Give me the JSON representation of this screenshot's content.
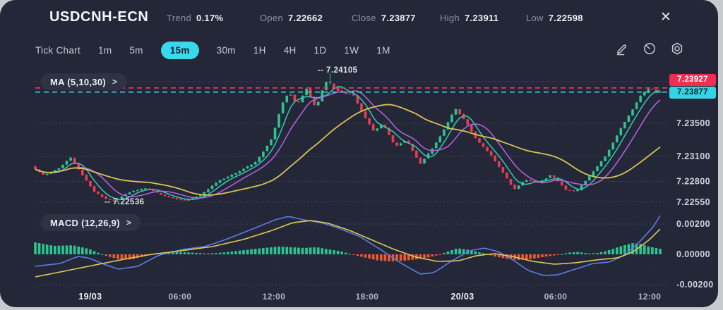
{
  "header": {
    "symbol": "USDCNH-ECN",
    "stats": [
      {
        "label": "Trend",
        "value": "0.17%"
      },
      {
        "label": "Open",
        "value": "7.22662"
      },
      {
        "label": "Close",
        "value": "7.23877"
      },
      {
        "label": "High",
        "value": "7.23911"
      },
      {
        "label": "Low",
        "value": "7.22598"
      }
    ],
    "close_icon": "✕"
  },
  "toolbar": {
    "timeframes": [
      "Tick Chart",
      "1m",
      "5m",
      "15m",
      "30m",
      "1H",
      "4H",
      "1D",
      "1W",
      "1M"
    ],
    "active_timeframe": "15m",
    "icons": [
      "draw-icon",
      "gauge-icon",
      "settings-icon"
    ]
  },
  "overlays": {
    "ma_label": "MA (5,10,30)",
    "ma_chevron": ">",
    "macd_label": "MACD (12,26,9)",
    "macd_chevron": ">",
    "high_annotation": "-- 7.24105",
    "low_annotation": "-- 7.22536",
    "ask_badge": "7.23927",
    "bid_badge": "7.23877"
  },
  "colors": {
    "panel_bg": "#242738",
    "page_bg": "#c9cacd",
    "candle_up": "#2ec48f",
    "candle_down": "#ea3d52",
    "ask_line": "#f23a5c",
    "bid_line": "#35d3e6",
    "ma5": "#36c8b8",
    "ma10": "#b565e0",
    "ma30": "#d8c455",
    "macd_line": "#5d7ce0",
    "signal_line": "#ddc75a",
    "hist_pos": "#2dc492",
    "hist_neg": "#f25a2d",
    "grid": "#494d60",
    "axis_text": "#cfd3de",
    "date_text": "#edeef4",
    "time_text": "#b3b7c4"
  },
  "chart_data": {
    "type": "candlestick",
    "symbol": "USDCNH-ECN",
    "interval": "15m",
    "ohlc_summary": {
      "open": 7.22662,
      "close": 7.23877,
      "high": 7.23911,
      "low": 7.22598,
      "trend_pct": "0.17%"
    },
    "levels": {
      "ask": 7.23927,
      "bid": 7.23877,
      "session_high": 7.24105,
      "session_low": 7.22536
    },
    "y_axis": {
      "ylim": [
        7.2248,
        7.2418
      ],
      "gridlines": [
        7.24,
        7.235,
        7.231,
        7.228,
        7.2255
      ],
      "labeled": [
        {
          "price": 7.235,
          "label": "7.23500"
        },
        {
          "price": 7.231,
          "label": "7.23100"
        },
        {
          "price": 7.228,
          "label": "7.22800"
        },
        {
          "price": 7.2255,
          "label": "7.22550"
        }
      ]
    },
    "x_axis": {
      "ticks": [
        {
          "label": "19/03",
          "t": 0.088,
          "bold": true
        },
        {
          "label": "06:00",
          "t": 0.2316,
          "bold": false
        },
        {
          "label": "12:00",
          "t": 0.3819,
          "bold": false
        },
        {
          "label": "18:00",
          "t": 0.5311,
          "bold": false
        },
        {
          "label": "20/03",
          "t": 0.6836,
          "bold": true
        },
        {
          "label": "06:00",
          "t": 0.8328,
          "bold": false
        },
        {
          "label": "12:00",
          "t": 0.9831,
          "bold": false
        }
      ]
    },
    "num_bars": 160,
    "price_path": [
      [
        0.0,
        7.2298
      ],
      [
        0.02,
        7.2287
      ],
      [
        0.045,
        7.2296
      ],
      [
        0.062,
        7.2309
      ],
      [
        0.08,
        7.2289
      ],
      [
        0.1,
        7.2268
      ],
      [
        0.118,
        7.2259
      ],
      [
        0.13,
        7.2256
      ],
      [
        0.145,
        7.2262
      ],
      [
        0.16,
        7.2268
      ],
      [
        0.185,
        7.2272
      ],
      [
        0.21,
        7.2263
      ],
      [
        0.23,
        7.2259
      ],
      [
        0.248,
        7.2257
      ],
      [
        0.27,
        7.2263
      ],
      [
        0.3,
        7.2281
      ],
      [
        0.33,
        7.2291
      ],
      [
        0.36,
        7.2304
      ],
      [
        0.385,
        7.2332
      ],
      [
        0.4,
        7.2372
      ],
      [
        0.412,
        7.2388
      ],
      [
        0.425,
        7.2372
      ],
      [
        0.44,
        7.2392
      ],
      [
        0.455,
        7.2368
      ],
      [
        0.47,
        7.24
      ],
      [
        0.478,
        7.2398
      ],
      [
        0.492,
        7.2388
      ],
      [
        0.515,
        7.2384
      ],
      [
        0.53,
        7.2362
      ],
      [
        0.548,
        7.234
      ],
      [
        0.562,
        7.235
      ],
      [
        0.582,
        7.2322
      ],
      [
        0.6,
        7.233
      ],
      [
        0.622,
        7.2301
      ],
      [
        0.64,
        7.2318
      ],
      [
        0.66,
        7.2342
      ],
      [
        0.678,
        7.2368
      ],
      [
        0.695,
        7.2352
      ],
      [
        0.712,
        7.233
      ],
      [
        0.735,
        7.2312
      ],
      [
        0.755,
        7.229
      ],
      [
        0.772,
        7.227
      ],
      [
        0.79,
        7.2282
      ],
      [
        0.812,
        7.2278
      ],
      [
        0.832,
        7.2288
      ],
      [
        0.855,
        7.227
      ],
      [
        0.872,
        7.2268
      ],
      [
        0.895,
        7.2288
      ],
      [
        0.92,
        7.2312
      ],
      [
        0.94,
        7.234
      ],
      [
        0.958,
        7.2362
      ],
      [
        0.975,
        7.2384
      ],
      [
        0.99,
        7.2393
      ],
      [
        1.0,
        7.2388
      ]
    ],
    "ma_periods": [
      5,
      10,
      30
    ],
    "macd": {
      "params": [
        12,
        26,
        9
      ],
      "y_axis": [
        {
          "value": 0.002,
          "label": "0.00200"
        },
        {
          "value": 0.0,
          "label": "0.00000"
        },
        {
          "value": -0.002,
          "label": "-0.00200"
        }
      ],
      "macd_line": [
        [
          0.0,
          -0.00079
        ],
        [
          0.04,
          -0.0006
        ],
        [
          0.068,
          -0.00014
        ],
        [
          0.085,
          -0.00023
        ],
        [
          0.113,
          -0.0007
        ],
        [
          0.133,
          -0.00098
        ],
        [
          0.164,
          -0.00079
        ],
        [
          0.198,
          -5e-05
        ],
        [
          0.237,
          0.00033
        ],
        [
          0.271,
          0.00051
        ],
        [
          0.305,
          0.00098
        ],
        [
          0.345,
          0.00163
        ],
        [
          0.384,
          0.00228
        ],
        [
          0.405,
          0.00251
        ],
        [
          0.429,
          0.00228
        ],
        [
          0.458,
          0.00209
        ],
        [
          0.486,
          0.00172
        ],
        [
          0.52,
          0.00116
        ],
        [
          0.554,
          0.00028
        ],
        [
          0.588,
          -0.00065
        ],
        [
          0.616,
          -0.0013
        ],
        [
          0.638,
          -0.00121
        ],
        [
          0.667,
          -0.00042
        ],
        [
          0.695,
          0.00023
        ],
        [
          0.718,
          0.00042
        ],
        [
          0.74,
          0.00019
        ],
        [
          0.763,
          -0.00033
        ],
        [
          0.789,
          -0.00107
        ],
        [
          0.814,
          -0.0014
        ],
        [
          0.836,
          -0.00135
        ],
        [
          0.864,
          -0.00098
        ],
        [
          0.893,
          -0.0006
        ],
        [
          0.918,
          -0.00051
        ],
        [
          0.944,
          -5e-05
        ],
        [
          0.966,
          0.00079
        ],
        [
          0.989,
          0.00181
        ],
        [
          1.0,
          0.00256
        ]
      ],
      "signal_line": [
        [
          0.0,
          -0.00149
        ],
        [
          0.045,
          -0.00112
        ],
        [
          0.096,
          -0.0007
        ],
        [
          0.141,
          -0.00033
        ],
        [
          0.186,
          0.0
        ],
        [
          0.232,
          0.00023
        ],
        [
          0.283,
          0.00051
        ],
        [
          0.333,
          0.00098
        ],
        [
          0.379,
          0.00158
        ],
        [
          0.412,
          0.00209
        ],
        [
          0.441,
          0.00223
        ],
        [
          0.469,
          0.00205
        ],
        [
          0.503,
          0.00158
        ],
        [
          0.537,
          0.00098
        ],
        [
          0.574,
          0.00033
        ],
        [
          0.61,
          -0.00019
        ],
        [
          0.644,
          -0.00047
        ],
        [
          0.678,
          -0.00042
        ],
        [
          0.706,
          -9e-05
        ],
        [
          0.735,
          5e-05
        ],
        [
          0.763,
          -0.00014
        ],
        [
          0.797,
          -0.00047
        ],
        [
          0.831,
          -0.00065
        ],
        [
          0.864,
          -0.00056
        ],
        [
          0.898,
          -0.00037
        ],
        [
          0.932,
          -0.00023
        ],
        [
          0.958,
          0.00019
        ],
        [
          0.983,
          0.00098
        ],
        [
          1.0,
          0.00167
        ]
      ],
      "histogram": [
        [
          0.0,
          0.00079
        ],
        [
          0.03,
          0.00056
        ],
        [
          0.06,
          0.0006
        ],
        [
          0.085,
          0.00037
        ],
        [
          0.1,
          0.00012
        ],
        [
          0.115,
          -0.00012
        ],
        [
          0.135,
          -0.00035
        ],
        [
          0.155,
          -0.00033
        ],
        [
          0.175,
          -0.00012
        ],
        [
          0.195,
          9e-05
        ],
        [
          0.22,
          0.00016
        ],
        [
          0.25,
          0.00012
        ],
        [
          0.275,
          5e-05
        ],
        [
          0.3,
          0.00012
        ],
        [
          0.33,
          0.00026
        ],
        [
          0.36,
          0.0004
        ],
        [
          0.39,
          0.00051
        ],
        [
          0.41,
          0.00047
        ],
        [
          0.43,
          0.00042
        ],
        [
          0.45,
          0.00047
        ],
        [
          0.47,
          0.00033
        ],
        [
          0.49,
          0.00019
        ],
        [
          0.51,
          -5e-05
        ],
        [
          0.53,
          -0.00023
        ],
        [
          0.55,
          -0.00042
        ],
        [
          0.57,
          -0.00047
        ],
        [
          0.59,
          -0.00042
        ],
        [
          0.61,
          -0.00033
        ],
        [
          0.63,
          -0.00019
        ],
        [
          0.645,
          -5e-05
        ],
        [
          0.66,
          0.00019
        ],
        [
          0.675,
          0.0004
        ],
        [
          0.69,
          0.00033
        ],
        [
          0.705,
          0.00019
        ],
        [
          0.72,
          5e-05
        ],
        [
          0.735,
          -0.00014
        ],
        [
          0.755,
          -0.0003
        ],
        [
          0.775,
          -0.00037
        ],
        [
          0.795,
          -0.0003
        ],
        [
          0.815,
          -0.00016
        ],
        [
          0.835,
          -5e-05
        ],
        [
          0.855,
          0.00012
        ],
        [
          0.87,
          0.00016
        ],
        [
          0.885,
          5e-05
        ],
        [
          0.9,
          9e-05
        ],
        [
          0.915,
          0.00023
        ],
        [
          0.935,
          0.00051
        ],
        [
          0.955,
          0.00074
        ],
        [
          0.968,
          0.0007
        ],
        [
          0.982,
          0.00051
        ],
        [
          1.0,
          0.00037
        ]
      ]
    }
  }
}
